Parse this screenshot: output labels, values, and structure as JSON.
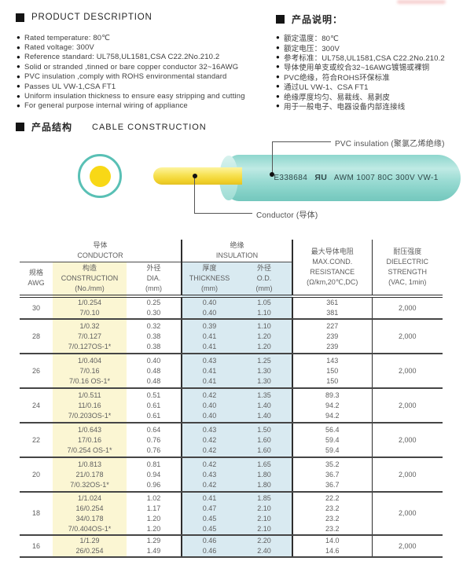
{
  "colors": {
    "accent_teal": "#59c0b5",
    "conductor_yellow": "#f8d816",
    "table_yellow_bg": "#fbf6d3",
    "table_blue_bg": "#d9eaf1"
  },
  "description_en": {
    "title": "PRODUCT DESCRIPTION",
    "bullets": [
      "Rated temperature: 80℃",
      "Rated voltage: 300V",
      "Reference standard: UL758,UL1581,CSA C22.2No.210.2",
      "Solid or stranded ,tinned or bare copper conductor 32~16AWG",
      "PVC insulation ,comply with ROHS environmental standard",
      "Passes UL VW-1,CSA FT1",
      "Uniform insulation thickness to ensure easy stripping and cutting",
      "For general purpose internal wiring of appliance"
    ]
  },
  "description_cn": {
    "title": "产品说明：",
    "bullets": [
      "额定温度：80℃",
      "额定电压：300V",
      "参考标准：UL758,UL1581,CSA C22.2No.210.2",
      "导体使用单支或绞合32~16AWG镀锡或裸铜",
      "PVC绝缘，符合ROHS环保标准",
      "通过UL VW-1、CSA FT1",
      "绝缘厚度均匀、易裁线、易剥皮",
      "用于一般电子、电器设备内部连接线"
    ]
  },
  "construction": {
    "title_cn": "产品结构",
    "title_en": "CABLE CONSTRUCTION",
    "marking_cert": "E338684",
    "ul_mark": "ЯU",
    "marking_spec": "AWM 1007 80C 300V VW-1",
    "label_insulation": "PVC insulation (聚氯乙烯绝缘)",
    "label_conductor": "Conductor (导体)"
  },
  "table": {
    "header": {
      "group_conductor": [
        "导体",
        "CONDUCTOR"
      ],
      "group_insulation": [
        "绝缘",
        "INSULATION"
      ],
      "col_awg": [
        "规格",
        "AWG"
      ],
      "col_construction": [
        "构造",
        "CONSTRUCTION",
        "(No./mm)"
      ],
      "col_dia": [
        "外径",
        "DIA.",
        "(mm)"
      ],
      "col_thickness": [
        "厚度",
        "THICKNESS",
        "(mm)"
      ],
      "col_od": [
        "外径",
        "O.D.",
        "(mm)"
      ],
      "col_resistance": [
        "最大导体电阻",
        "MAX.COND.",
        "RESISTANCE",
        "(Ω/km,20℃,DC)"
      ],
      "col_dielectric": [
        "耐压强度",
        "DIELECTRIC",
        "STRENGTH",
        "(VAC, 1min)"
      ]
    },
    "rows": [
      {
        "awg": "30",
        "dielectric": "2,000",
        "lines": [
          {
            "construction": "1/0.254",
            "dia": "0.25",
            "thickness": "0.40",
            "od": "1.05",
            "resistance": "361"
          },
          {
            "construction": "7/0.10",
            "dia": "0.30",
            "thickness": "0.40",
            "od": "1.10",
            "resistance": "381"
          }
        ]
      },
      {
        "awg": "28",
        "dielectric": "2,000",
        "lines": [
          {
            "construction": "1/0.32",
            "dia": "0.32",
            "thickness": "0.39",
            "od": "1.10",
            "resistance": "227"
          },
          {
            "construction": "7/0.127",
            "dia": "0.38",
            "thickness": "0.41",
            "od": "1.20",
            "resistance": "239"
          },
          {
            "construction": "7/0.127OS-1*",
            "dia": "0.38",
            "thickness": "0.41",
            "od": "1.20",
            "resistance": "239"
          }
        ]
      },
      {
        "awg": "26",
        "dielectric": "2,000",
        "lines": [
          {
            "construction": "1/0.404",
            "dia": "0.40",
            "thickness": "0.43",
            "od": "1.25",
            "resistance": "143"
          },
          {
            "construction": "7/0.16",
            "dia": "0.48",
            "thickness": "0.41",
            "od": "1.30",
            "resistance": "150"
          },
          {
            "construction": "7/0.16 OS-1*",
            "dia": "0.48",
            "thickness": "0.41",
            "od": "1.30",
            "resistance": "150"
          }
        ]
      },
      {
        "awg": "24",
        "dielectric": "2,000",
        "lines": [
          {
            "construction": "1/0.511",
            "dia": "0.51",
            "thickness": "0.42",
            "od": "1.35",
            "resistance": "89.3"
          },
          {
            "construction": "11/0.16",
            "dia": "0.61",
            "thickness": "0.40",
            "od": "1.40",
            "resistance": "94.2"
          },
          {
            "construction": "7/0.203OS-1*",
            "dia": "0.61",
            "thickness": "0.40",
            "od": "1.40",
            "resistance": "94.2"
          }
        ]
      },
      {
        "awg": "22",
        "dielectric": "2,000",
        "lines": [
          {
            "construction": "1/0.643",
            "dia": "0.64",
            "thickness": "0.43",
            "od": "1.50",
            "resistance": "56.4"
          },
          {
            "construction": "17/0.16",
            "dia": "0.76",
            "thickness": "0.42",
            "od": "1.60",
            "resistance": "59.4"
          },
          {
            "construction": "7/0.254 OS-1*",
            "dia": "0.76",
            "thickness": "0.42",
            "od": "1.60",
            "resistance": "59.4"
          }
        ]
      },
      {
        "awg": "20",
        "dielectric": "2,000",
        "lines": [
          {
            "construction": "1/0.813",
            "dia": "0.81",
            "thickness": "0.42",
            "od": "1.65",
            "resistance": "35.2"
          },
          {
            "construction": "21/0.178",
            "dia": "0.94",
            "thickness": "0.43",
            "od": "1.80",
            "resistance": "36.7"
          },
          {
            "construction": "7/0.32OS-1*",
            "dia": "0.96",
            "thickness": "0.42",
            "od": "1.80",
            "resistance": "36.7"
          }
        ]
      },
      {
        "awg": "18",
        "dielectric": "2,000",
        "lines": [
          {
            "construction": "1/1.024",
            "dia": "1.02",
            "thickness": "0.41",
            "od": "1.85",
            "resistance": "22.2"
          },
          {
            "construction": "16/0.254",
            "dia": "1.17",
            "thickness": "0.47",
            "od": "2.10",
            "resistance": "23.2"
          },
          {
            "construction": "34/0.178",
            "dia": "1.20",
            "thickness": "0.45",
            "od": "2.10",
            "resistance": "23.2"
          },
          {
            "construction": "7/0.404OS-1*",
            "dia": "1.20",
            "thickness": "0.45",
            "od": "2.10",
            "resistance": "23.2"
          }
        ]
      },
      {
        "awg": "16",
        "dielectric": "2,000",
        "lines": [
          {
            "construction": "1/1.29",
            "dia": "1.29",
            "thickness": "0.46",
            "od": "2.20",
            "resistance": "14.0"
          },
          {
            "construction": "26/0.254",
            "dia": "1.49",
            "thickness": "0.46",
            "od": "2.40",
            "resistance": "14.6"
          }
        ]
      }
    ]
  }
}
